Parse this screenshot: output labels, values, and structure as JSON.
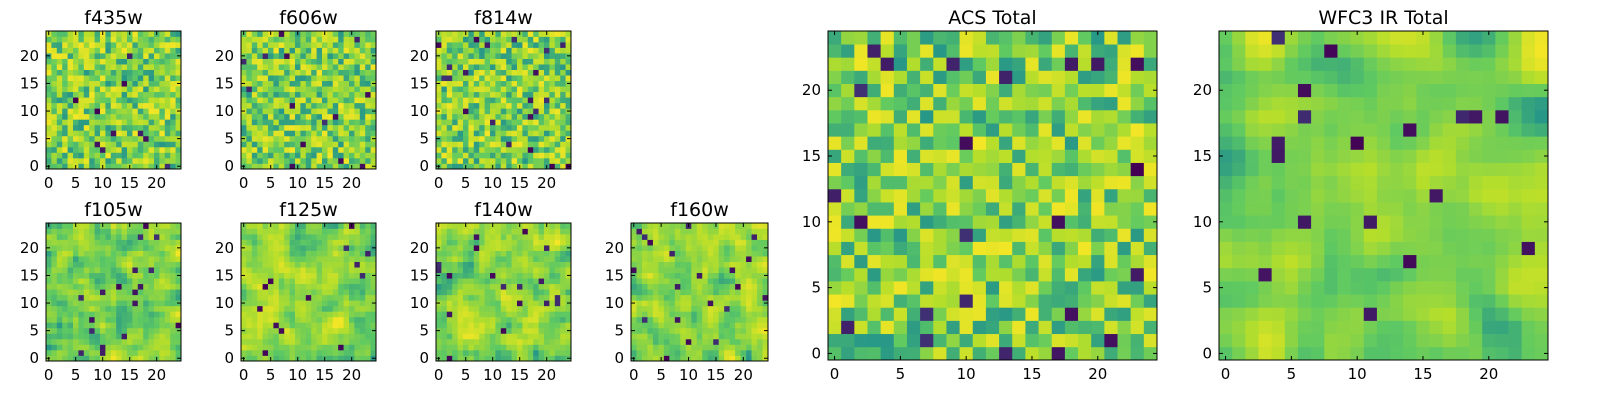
{
  "colormap": [
    "#440154",
    "#3b528b",
    "#21918c",
    "#5ec962",
    "#b5de2b",
    "#fde725"
  ],
  "chart_data": [
    {
      "type": "heatmap",
      "title": "f435w",
      "size": 25,
      "seed": 11,
      "smooth": 0,
      "xticks": [
        0,
        5,
        10,
        15,
        20
      ],
      "yticks": [
        0,
        5,
        10,
        15,
        20
      ],
      "xlim": [
        -0.5,
        24.5
      ],
      "ylim": [
        -0.5,
        24.5
      ],
      "grid": false
    },
    {
      "type": "heatmap",
      "title": "f606w",
      "size": 25,
      "seed": 23,
      "smooth": 0,
      "xticks": [
        0,
        5,
        10,
        15,
        20
      ],
      "yticks": [
        0,
        5,
        10,
        15,
        20
      ],
      "xlim": [
        -0.5,
        24.5
      ],
      "ylim": [
        -0.5,
        24.5
      ],
      "grid": false
    },
    {
      "type": "heatmap",
      "title": "f814w",
      "size": 25,
      "seed": 37,
      "smooth": 0,
      "xticks": [
        0,
        5,
        10,
        15,
        20
      ],
      "yticks": [
        0,
        5,
        10,
        15,
        20
      ],
      "xlim": [
        -0.5,
        24.5
      ],
      "ylim": [
        -0.5,
        24.5
      ],
      "grid": false
    },
    {
      "type": "heatmap",
      "title": "f105w",
      "size": 25,
      "seed": 41,
      "smooth": 1,
      "xticks": [
        0,
        5,
        10,
        15,
        20
      ],
      "yticks": [
        0,
        5,
        10,
        15,
        20
      ],
      "xlim": [
        -0.5,
        24.5
      ],
      "ylim": [
        -0.5,
        24.5
      ],
      "grid": false
    },
    {
      "type": "heatmap",
      "title": "f125w",
      "size": 25,
      "seed": 53,
      "smooth": 1,
      "xticks": [
        0,
        5,
        10,
        15,
        20
      ],
      "yticks": [
        0,
        5,
        10,
        15,
        20
      ],
      "xlim": [
        -0.5,
        24.5
      ],
      "ylim": [
        -0.5,
        24.5
      ],
      "grid": false
    },
    {
      "type": "heatmap",
      "title": "f140w",
      "size": 25,
      "seed": 67,
      "smooth": 1,
      "xticks": [
        0,
        5,
        10,
        15,
        20
      ],
      "yticks": [
        0,
        5,
        10,
        15,
        20
      ],
      "xlim": [
        -0.5,
        24.5
      ],
      "ylim": [
        -0.5,
        24.5
      ],
      "grid": false
    },
    {
      "type": "heatmap",
      "title": "f160w",
      "size": 25,
      "seed": 79,
      "smooth": 1,
      "xticks": [
        0,
        5,
        10,
        15,
        20
      ],
      "yticks": [
        0,
        5,
        10,
        15,
        20
      ],
      "xlim": [
        -0.5,
        24.5
      ],
      "ylim": [
        -0.5,
        24.5
      ],
      "grid": false
    },
    {
      "type": "heatmap",
      "title": "ACS Total",
      "size": 25,
      "seed": 97,
      "smooth": 0,
      "xticks": [
        0,
        5,
        10,
        15,
        20
      ],
      "yticks": [
        0,
        5,
        10,
        15,
        20
      ],
      "xlim": [
        -0.5,
        24.5
      ],
      "ylim": [
        -0.5,
        24.5
      ],
      "grid": false
    },
    {
      "type": "heatmap",
      "title": "WFC3 IR Total",
      "size": 25,
      "seed": 113,
      "smooth": 2,
      "xticks": [
        0,
        5,
        10,
        15,
        20
      ],
      "yticks": [
        0,
        5,
        10,
        15,
        20
      ],
      "xlim": [
        -0.5,
        24.5
      ],
      "ylim": [
        -0.5,
        24.5
      ],
      "grid": false
    }
  ]
}
